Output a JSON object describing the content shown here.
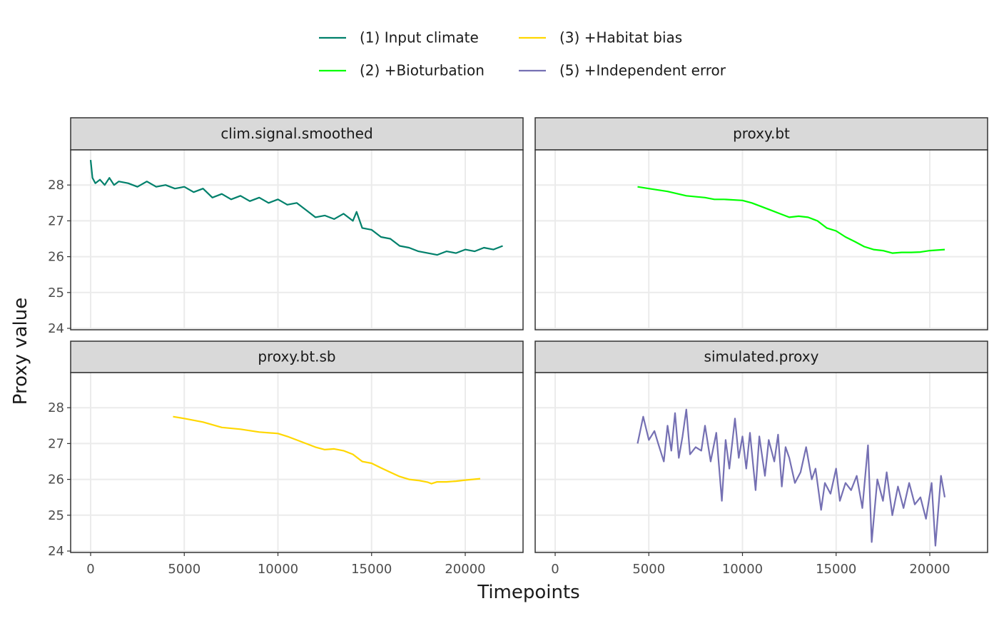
{
  "axes": {
    "x_label": "Timepoints",
    "y_label": "Proxy value"
  },
  "chart_data": [
    {
      "type": "line",
      "title": "clim.signal.smoothed",
      "x": [
        0,
        100,
        250,
        500,
        750,
        1000,
        1250,
        1500,
        2000,
        2500,
        3000,
        3500,
        4000,
        4500,
        5000,
        5500,
        6000,
        6500,
        7000,
        7500,
        8000,
        8500,
        9000,
        9500,
        10000,
        10500,
        11000,
        11500,
        12000,
        12500,
        13000,
        13500,
        14000,
        14200,
        14500,
        15000,
        15500,
        16000,
        16500,
        17000,
        17500,
        18000,
        18500,
        19000,
        19500,
        20000,
        20500,
        21000,
        21500,
        22000
      ],
      "series": [
        {
          "name": "(1) Input climate",
          "color": "#00806b",
          "values": [
            28.7,
            28.2,
            28.05,
            28.15,
            28.0,
            28.2,
            28.0,
            28.1,
            28.05,
            27.95,
            28.1,
            27.95,
            28.0,
            27.9,
            27.95,
            27.8,
            27.9,
            27.65,
            27.75,
            27.6,
            27.7,
            27.55,
            27.65,
            27.5,
            27.6,
            27.45,
            27.5,
            27.3,
            27.1,
            27.15,
            27.05,
            27.2,
            27.0,
            27.25,
            26.8,
            26.75,
            26.55,
            26.5,
            26.3,
            26.25,
            26.15,
            26.1,
            26.05,
            26.15,
            26.1,
            26.2,
            26.15,
            26.25,
            26.2,
            26.3
          ]
        }
      ],
      "xlim": [
        -1067,
        23086
      ],
      "ylim": [
        23.96,
        28.98
      ],
      "xticks": [
        0,
        5000,
        10000,
        15000,
        20000
      ],
      "yticks": [
        24,
        25,
        26,
        27,
        28
      ],
      "grid": true
    },
    {
      "type": "line",
      "title": "proxy.bt",
      "x": [
        4400,
        5000,
        6000,
        7000,
        8000,
        8500,
        9000,
        10000,
        10500,
        11000,
        11500,
        12000,
        12500,
        13000,
        13500,
        14000,
        14500,
        15000,
        15500,
        16000,
        16500,
        17000,
        17500,
        18000,
        18500,
        19000,
        19500,
        20000,
        20800
      ],
      "series": [
        {
          "name": "(2) +Bioturbation",
          "color": "#00ff00",
          "values": [
            27.95,
            27.9,
            27.82,
            27.7,
            27.65,
            27.6,
            27.6,
            27.57,
            27.5,
            27.4,
            27.3,
            27.2,
            27.1,
            27.13,
            27.1,
            27.0,
            26.8,
            26.72,
            26.55,
            26.42,
            26.28,
            26.2,
            26.17,
            26.1,
            26.12,
            26.12,
            26.13,
            26.17,
            26.2
          ]
        }
      ],
      "xlim": [
        -1067,
        23086
      ],
      "ylim": [
        23.96,
        28.98
      ],
      "xticks": [
        0,
        5000,
        10000,
        15000,
        20000
      ],
      "yticks": [
        24,
        25,
        26,
        27,
        28
      ],
      "grid": true
    },
    {
      "type": "line",
      "title": "proxy.bt.sb",
      "x": [
        4400,
        5000,
        6000,
        7000,
        8000,
        9000,
        10000,
        10500,
        11000,
        11500,
        12000,
        12500,
        13000,
        13500,
        14000,
        14500,
        15000,
        15500,
        16000,
        16500,
        17000,
        17500,
        18000,
        18200,
        18500,
        19000,
        19500,
        20000,
        20800
      ],
      "series": [
        {
          "name": "(3) +Habitat bias",
          "color": "#ffd700",
          "values": [
            27.75,
            27.7,
            27.6,
            27.45,
            27.4,
            27.32,
            27.28,
            27.2,
            27.1,
            27.0,
            26.9,
            26.83,
            26.85,
            26.8,
            26.7,
            26.5,
            26.45,
            26.32,
            26.2,
            26.08,
            26.0,
            25.97,
            25.92,
            25.88,
            25.93,
            25.93,
            25.95,
            25.98,
            26.02
          ]
        }
      ],
      "xlim": [
        -1067,
        23086
      ],
      "ylim": [
        23.96,
        28.98
      ],
      "xticks": [
        0,
        5000,
        10000,
        15000,
        20000
      ],
      "yticks": [
        24,
        25,
        26,
        27,
        28
      ],
      "grid": true
    },
    {
      "type": "line",
      "title": "simulated.proxy",
      "x": [
        4400,
        4700,
        5000,
        5300,
        5500,
        5800,
        6000,
        6200,
        6400,
        6600,
        6800,
        7000,
        7200,
        7500,
        7800,
        8000,
        8300,
        8600,
        8900,
        9100,
        9300,
        9600,
        9800,
        10000,
        10200,
        10400,
        10700,
        10900,
        11200,
        11400,
        11700,
        11900,
        12100,
        12300,
        12500,
        12800,
        13100,
        13400,
        13700,
        13900,
        14200,
        14400,
        14700,
        15000,
        15200,
        15500,
        15800,
        16100,
        16400,
        16700,
        16900,
        17200,
        17500,
        17700,
        18000,
        18300,
        18600,
        18900,
        19200,
        19500,
        19800,
        20100,
        20300,
        20600,
        20800
      ],
      "series": [
        {
          "name": "(5) +Independent error",
          "color": "#7570b3",
          "values": [
            27.0,
            27.75,
            27.1,
            27.35,
            27.0,
            26.5,
            27.5,
            26.8,
            27.85,
            26.6,
            27.2,
            27.95,
            26.7,
            26.9,
            26.8,
            27.5,
            26.5,
            27.3,
            25.4,
            27.1,
            26.3,
            27.7,
            26.6,
            27.2,
            26.3,
            27.3,
            25.7,
            27.2,
            26.1,
            27.1,
            26.5,
            27.25,
            25.8,
            26.9,
            26.6,
            25.9,
            26.2,
            26.9,
            26.0,
            26.3,
            25.15,
            25.9,
            25.6,
            26.3,
            25.4,
            25.9,
            25.7,
            26.1,
            25.2,
            26.95,
            24.25,
            26.0,
            25.4,
            26.2,
            25.0,
            25.8,
            25.2,
            25.9,
            25.3,
            25.5,
            24.9,
            25.9,
            24.15,
            26.1,
            25.5
          ]
        }
      ],
      "xlim": [
        -1067,
        23086
      ],
      "ylim": [
        23.96,
        28.98
      ],
      "xticks": [
        0,
        5000,
        10000,
        15000,
        20000
      ],
      "yticks": [
        24,
        25,
        26,
        27,
        28
      ],
      "grid": true
    }
  ]
}
